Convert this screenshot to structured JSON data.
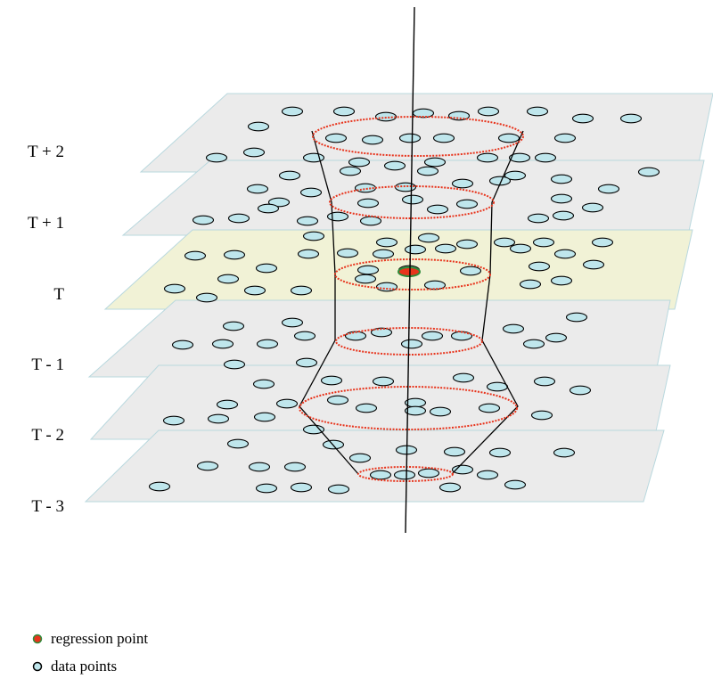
{
  "layers": [
    {
      "label": "T + 2",
      "color": "#ebebeb"
    },
    {
      "label": "T + 1",
      "color": "#ebebeb"
    },
    {
      "label": "T",
      "color": "#f1f2d6"
    },
    {
      "label": "T - 1",
      "color": "#ebebeb"
    },
    {
      "label": "T - 2",
      "color": "#ebebeb"
    },
    {
      "label": "T - 3",
      "color": "#ebebeb"
    }
  ],
  "legend": {
    "regression_label": "regression point",
    "data_label": "data points"
  },
  "colors": {
    "data_point_fill": "#bfe6ec",
    "regression_point": "#e8341c",
    "neighborhood_ring": "#e8341c",
    "plane_edge": "#b9d8de"
  }
}
